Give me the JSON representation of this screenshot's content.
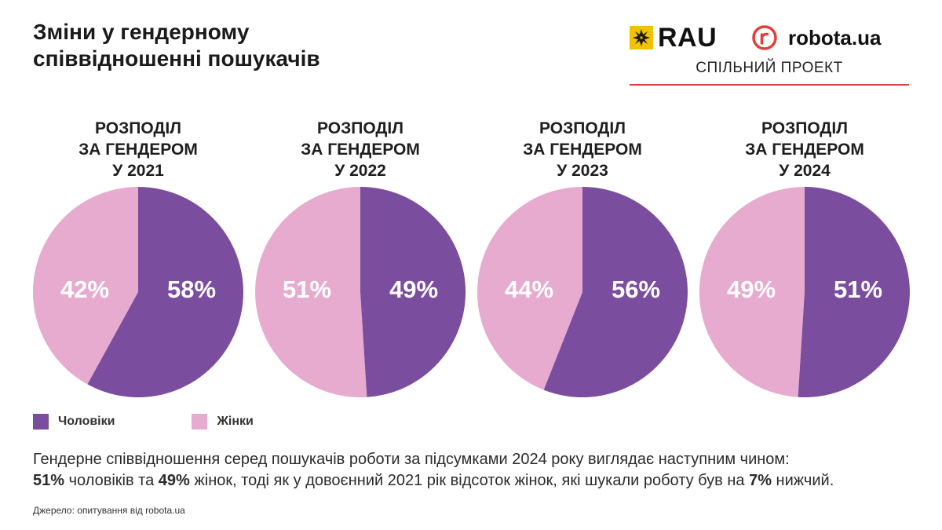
{
  "header": {
    "title_line1": "Зміни у гендерному",
    "title_line2": "співвідношенні пошукачів",
    "rau_logo_text": "RAU",
    "robota_logo_text": "robota.ua",
    "joint_project": "СПІЛЬНИЙ ПРОЕКТ"
  },
  "colors": {
    "men": "#7b4d9e",
    "women": "#e6abcf",
    "accent_line": "#e0403a",
    "rau_yellow": "#f2c200",
    "robota_red": "#e0403a"
  },
  "chart_data": {
    "type": "pie",
    "title": "Зміни у гендерному співвідношенні пошукачів",
    "legend": [
      "Чоловіки",
      "Жінки"
    ],
    "legend_placement": "bottom-left",
    "charts": [
      {
        "heading": [
          "РОЗПОДІЛ",
          "ЗА ГЕНДЕРОМ",
          "У 2021"
        ],
        "year": 2021,
        "men": 58,
        "women": 42,
        "men_label": "58%",
        "women_label": "42%"
      },
      {
        "heading": [
          "РОЗПОДІЛ",
          "ЗА ГЕНДЕРОМ",
          "У 2022"
        ],
        "year": 2022,
        "men": 49,
        "women": 51,
        "men_label": "49%",
        "women_label": "51%"
      },
      {
        "heading": [
          "РОЗПОДІЛ",
          "ЗА ГЕНДЕРОМ",
          "У 2023"
        ],
        "year": 2023,
        "men": 56,
        "women": 44,
        "men_label": "56%",
        "women_label": "44%"
      },
      {
        "heading": [
          "РОЗПОДІЛ",
          "ЗА ГЕНДЕРОМ",
          "У 2024"
        ],
        "year": 2024,
        "men": 51,
        "women": 49,
        "men_label": "51%",
        "women_label": "49%"
      }
    ]
  },
  "legend": {
    "men": "Чоловіки",
    "women": "Жінки"
  },
  "summary": {
    "line1": "Гендерне співвідношення серед пошукачів роботи за підсумками 2024 року виглядає наступним чином:",
    "men_pct": "51%",
    "men_text": " чоловіків та ",
    "women_pct": "49%",
    "women_text": " жінок, тоді як у довоєнний 2021 рік відсоток жінок, які шукали роботу був на ",
    "diff_pct": "7%",
    "end_text": " нижчий."
  },
  "footer": {
    "source": "Джерело: опитування від robota.ua"
  }
}
